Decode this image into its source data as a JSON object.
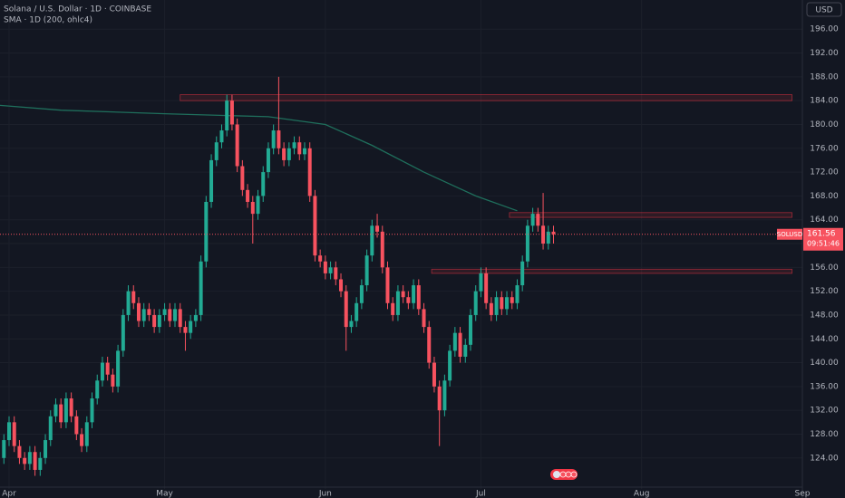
{
  "chart_data": {
    "type": "candlestick",
    "title": "Solana / U.S. Dollar · 1D · COINBASE",
    "subtitle": "SMA · 1D (200, ohlc4)",
    "currency": "USD",
    "symbol": "SOLUSD",
    "countdown": "09:51:46",
    "up_color": "#22ab94",
    "down_color": "#f7525f",
    "x": [
      -1,
      0,
      1,
      2,
      3,
      4,
      5,
      6,
      7,
      8,
      9,
      10,
      11,
      12,
      13,
      14,
      15,
      16,
      17,
      18,
      19,
      20,
      21,
      22,
      23,
      24,
      25,
      26,
      27,
      28,
      29,
      30,
      31,
      32,
      33,
      34,
      35,
      36,
      37,
      38,
      39,
      40,
      41,
      42,
      43,
      44,
      45,
      46,
      47,
      48,
      49,
      50,
      51,
      52,
      53,
      54,
      55,
      56,
      57,
      58,
      59,
      60,
      61,
      62,
      63,
      64,
      65,
      66,
      67,
      68,
      69,
      70,
      71,
      72,
      73,
      74,
      75,
      76,
      77,
      78,
      79,
      80,
      81,
      82,
      83,
      84,
      85,
      86,
      87,
      88,
      89,
      90,
      91,
      92,
      93,
      94,
      95,
      96,
      97,
      98,
      99,
      100,
      101,
      102,
      103,
      104,
      105
    ],
    "open": [
      124,
      127,
      130,
      126,
      124,
      123,
      125,
      122,
      124,
      127,
      131,
      133,
      130,
      134,
      131,
      128,
      126,
      130,
      134,
      137,
      140,
      138,
      136,
      142,
      148,
      152,
      150,
      147,
      149,
      148,
      146,
      148,
      149,
      147,
      149,
      146,
      145,
      147,
      148,
      157,
      167,
      174,
      177,
      179,
      184,
      180,
      173,
      169,
      167,
      165,
      168,
      172,
      176,
      179,
      176,
      174,
      176,
      177,
      175,
      176,
      168,
      158,
      157,
      155,
      156,
      154,
      152,
      146,
      147,
      150,
      153,
      158,
      163,
      162,
      156,
      150,
      148,
      152,
      151,
      150,
      153,
      149,
      146,
      140,
      136,
      132,
      137,
      142,
      145,
      141,
      143,
      148,
      152,
      155,
      150,
      148,
      151,
      149,
      151,
      150,
      153,
      157,
      163,
      165,
      163,
      160,
      162
    ],
    "high": [
      128,
      131,
      131,
      127,
      125,
      126,
      126,
      125,
      128,
      132,
      134,
      134,
      135,
      135,
      132,
      129,
      131,
      135,
      138,
      141,
      141,
      139,
      143,
      149,
      153,
      153,
      151,
      150,
      150,
      149,
      149,
      150,
      150,
      150,
      150,
      147,
      148,
      149,
      158,
      168,
      175,
      178,
      180,
      185,
      185,
      181,
      174,
      170,
      168,
      169,
      173,
      177,
      180,
      188,
      177,
      177,
      178,
      178,
      177,
      177,
      169,
      159,
      158,
      157,
      157,
      155,
      153,
      148,
      151,
      154,
      159,
      164,
      165,
      163,
      157,
      151,
      153,
      153,
      152,
      154,
      154,
      150,
      147,
      141,
      137,
      138,
      143,
      146,
      146,
      144,
      149,
      153,
      156,
      156,
      151,
      152,
      152,
      152,
      152,
      154,
      158,
      164,
      166,
      166,
      168.5,
      163,
      163
    ],
    "low": [
      123,
      126,
      125,
      123,
      122,
      122,
      121,
      121,
      123,
      126,
      130,
      129,
      129,
      130,
      127,
      125,
      125,
      129,
      133,
      136,
      137,
      135,
      135,
      141,
      147,
      149,
      146,
      146,
      147,
      145,
      145,
      147,
      146,
      146,
      145,
      142,
      144,
      146,
      147,
      156,
      166,
      173,
      176,
      178,
      179,
      172,
      168,
      166,
      160,
      164,
      167,
      171,
      175,
      175,
      173,
      173,
      175,
      174,
      174,
      167,
      157,
      156,
      154,
      154,
      153,
      151,
      142,
      145,
      146,
      149,
      152,
      157,
      161,
      155,
      149,
      147,
      147,
      150,
      149,
      149,
      148,
      145,
      139,
      135,
      126,
      131,
      136,
      141,
      140,
      140,
      142,
      147,
      151,
      149,
      147,
      147,
      148,
      148,
      149,
      149,
      152,
      156,
      162,
      162,
      159,
      159,
      160
    ],
    "close": [
      127,
      130,
      126,
      124,
      123,
      125,
      122,
      124,
      127,
      131,
      133,
      130,
      134,
      131,
      128,
      126,
      130,
      134,
      137,
      140,
      138,
      136,
      142,
      148,
      152,
      150,
      147,
      149,
      148,
      146,
      148,
      149,
      147,
      149,
      146,
      145,
      147,
      148,
      157,
      167,
      174,
      177,
      179,
      184,
      180,
      173,
      169,
      167,
      165,
      168,
      172,
      176,
      179,
      176,
      174,
      176,
      177,
      175,
      176,
      168,
      158,
      157,
      155,
      156,
      154,
      152,
      146,
      147,
      150,
      153,
      158,
      163,
      162,
      156,
      150,
      148,
      152,
      151,
      150,
      153,
      149,
      146,
      140,
      136,
      132,
      137,
      142,
      145,
      141,
      143,
      148,
      152,
      155,
      150,
      148,
      151,
      149,
      151,
      150,
      153,
      157,
      163,
      165,
      163,
      160,
      162,
      161.56
    ],
    "sma": {
      "color": "#1f6f5c",
      "x": [
        -1.75,
        10,
        30,
        50,
        61,
        70,
        80,
        90,
        98
      ],
      "values": [
        183.2,
        182.4,
        181.8,
        181.3,
        180,
        176.5,
        172,
        168,
        165.5
      ]
    },
    "zones": [
      {
        "x": [
          33,
          151
        ],
        "y": [
          184,
          185
        ]
      },
      {
        "x": [
          96.5,
          151
        ],
        "y": [
          164.4,
          165.2
        ]
      },
      {
        "x": [
          81.5,
          151
        ],
        "y": [
          155,
          155.7
        ]
      }
    ],
    "zone_color": "#f23645",
    "xlim": [
      -1.75,
      153
    ],
    "ylim": [
      118.8,
      200.9
    ],
    "xticks": [
      {
        "value": 0,
        "label": "Apr"
      },
      {
        "value": 30,
        "label": "May"
      },
      {
        "value": 61,
        "label": "Jun"
      },
      {
        "value": 91,
        "label": "Jul"
      },
      {
        "value": 122,
        "label": "Aug"
      },
      {
        "value": 153,
        "label": "Sep"
      }
    ],
    "yticks": [
      {
        "value": 124,
        "label": "124.00"
      },
      {
        "value": 128,
        "label": "128.00"
      },
      {
        "value": 132,
        "label": "132.00"
      },
      {
        "value": 136,
        "label": "136.00"
      },
      {
        "value": 140,
        "label": "140.00"
      },
      {
        "value": 144,
        "label": "144.00"
      },
      {
        "value": 148,
        "label": "148.00"
      },
      {
        "value": 152,
        "label": "152.00"
      },
      {
        "value": 156,
        "label": "156.00"
      },
      {
        "value": 160,
        "label": "160.00"
      },
      {
        "value": 164,
        "label": "164.00"
      },
      {
        "value": 168,
        "label": "168.00"
      },
      {
        "value": 172,
        "label": "172.00"
      },
      {
        "value": 176,
        "label": "176.00"
      },
      {
        "value": 180,
        "label": "180.00"
      },
      {
        "value": 184,
        "label": "184.00"
      },
      {
        "value": 188,
        "label": "188.00"
      },
      {
        "value": 192,
        "label": "192.00"
      },
      {
        "value": 196,
        "label": "196.00"
      }
    ],
    "grid": true
  }
}
